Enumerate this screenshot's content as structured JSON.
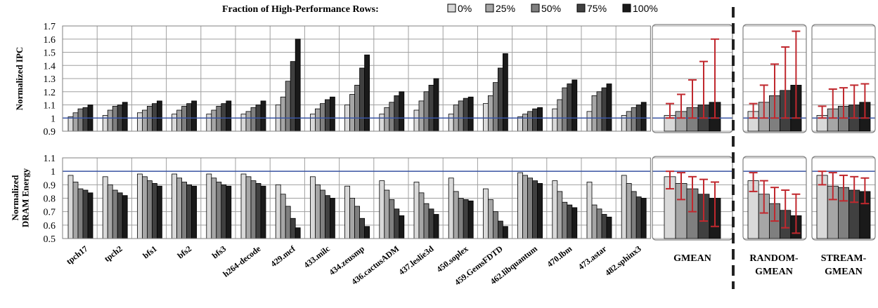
{
  "chart_data": {
    "type": "bar",
    "legend": {
      "title": "Fraction of High-Performance Rows:",
      "position": "top-center",
      "entries": [
        "0%",
        "25%",
        "50%",
        "75%",
        "100%"
      ],
      "colors": [
        "#d9d9d9",
        "#a6a6a6",
        "#7f7f7f",
        "#404040",
        "#1a1a1a"
      ]
    },
    "reference_line_color": "#3a55a4",
    "error_bar_color": "#c0282e",
    "categories": [
      "tpch17",
      "tpch2",
      "bfs1",
      "bfs2",
      "bfs3",
      "h264-decode",
      "429.mcf",
      "433.milc",
      "434.zeusmp",
      "436.cactusADM",
      "437.leslie3d",
      "450.soplex",
      "459.GemsFDTD",
      "462.libquantum",
      "470.lbm",
      "473.astar",
      "482.sphinx3"
    ],
    "panels": [
      {
        "ylabel": "Normalized IPC",
        "ylim": [
          0.9,
          1.7
        ],
        "yticks": [
          "0.9",
          "1",
          "1.1",
          "1.2",
          "1.3",
          "1.4",
          "1.5",
          "1.6",
          "1.7"
        ],
        "reference_line": 1.0,
        "values": [
          [
            1.01,
            1.04,
            1.07,
            1.08,
            1.1
          ],
          [
            1.02,
            1.06,
            1.09,
            1.1,
            1.12
          ],
          [
            1.04,
            1.06,
            1.09,
            1.11,
            1.13
          ],
          [
            1.03,
            1.06,
            1.09,
            1.11,
            1.13
          ],
          [
            1.03,
            1.06,
            1.09,
            1.11,
            1.13
          ],
          [
            1.03,
            1.05,
            1.08,
            1.1,
            1.13
          ],
          [
            1.1,
            1.16,
            1.28,
            1.43,
            1.6
          ],
          [
            1.03,
            1.07,
            1.11,
            1.14,
            1.16
          ],
          [
            1.1,
            1.18,
            1.25,
            1.38,
            1.48
          ],
          [
            1.03,
            1.08,
            1.12,
            1.17,
            1.2
          ],
          [
            1.06,
            1.13,
            1.2,
            1.25,
            1.3
          ],
          [
            1.03,
            1.1,
            1.13,
            1.15,
            1.16
          ],
          [
            1.11,
            1.17,
            1.27,
            1.38,
            1.49
          ],
          [
            1.01,
            1.03,
            1.05,
            1.07,
            1.08
          ],
          [
            1.07,
            1.14,
            1.23,
            1.26,
            1.29
          ],
          [
            1.05,
            1.17,
            1.2,
            1.23,
            1.26
          ],
          [
            1.02,
            1.05,
            1.08,
            1.1,
            1.12
          ]
        ],
        "gmean": {
          "label": "GMEAN",
          "ylim": [
            0.9,
            1.7
          ],
          "values": [
            1.02,
            1.05,
            1.08,
            1.1,
            1.12
          ],
          "error_low": [
            1.0,
            1.0,
            1.0,
            1.0,
            1.0
          ],
          "error_high": [
            1.11,
            1.18,
            1.29,
            1.43,
            1.6
          ]
        },
        "random_gmean": {
          "label": "RANDOM-GMEAN",
          "ylim": [
            0.9,
            1.7
          ],
          "values": [
            1.05,
            1.12,
            1.17,
            1.21,
            1.25
          ],
          "error_low": [
            1.0,
            1.0,
            1.0,
            1.0,
            1.0
          ],
          "error_high": [
            1.11,
            1.25,
            1.41,
            1.54,
            1.66
          ]
        },
        "stream_gmean": {
          "label": "STREAM-GMEAN",
          "ylim": [
            0.9,
            1.7
          ],
          "values": [
            1.02,
            1.07,
            1.09,
            1.1,
            1.12
          ],
          "error_low": [
            1.0,
            1.0,
            1.0,
            1.0,
            1.0
          ],
          "error_high": [
            1.09,
            1.22,
            1.23,
            1.25,
            1.26
          ]
        }
      },
      {
        "ylabel": "Normalized DRAM Energy",
        "ylim": [
          0.5,
          1.1
        ],
        "yticks": [
          "0.5",
          "0.6",
          "0.7",
          "0.8",
          "0.9",
          "1",
          "1.1"
        ],
        "reference_line": 1.0,
        "values": [
          [
            0.97,
            0.92,
            0.87,
            0.86,
            0.84
          ],
          [
            0.96,
            0.9,
            0.86,
            0.84,
            0.82
          ],
          [
            0.98,
            0.96,
            0.93,
            0.91,
            0.89
          ],
          [
            0.98,
            0.95,
            0.92,
            0.9,
            0.89
          ],
          [
            0.98,
            0.95,
            0.92,
            0.9,
            0.89
          ],
          [
            0.98,
            0.96,
            0.93,
            0.91,
            0.89
          ],
          [
            0.9,
            0.83,
            0.74,
            0.65,
            0.58
          ],
          [
            0.96,
            0.9,
            0.86,
            0.82,
            0.8
          ],
          [
            0.89,
            0.8,
            0.74,
            0.65,
            0.59
          ],
          [
            0.93,
            0.86,
            0.79,
            0.72,
            0.67
          ],
          [
            0.92,
            0.84,
            0.76,
            0.72,
            0.68
          ],
          [
            0.95,
            0.85,
            0.8,
            0.79,
            0.78
          ],
          [
            0.87,
            0.79,
            0.7,
            0.63,
            0.59
          ],
          [
            0.99,
            0.97,
            0.95,
            0.93,
            0.91
          ],
          [
            0.93,
            0.85,
            0.77,
            0.75,
            0.73
          ],
          [
            0.92,
            0.75,
            0.72,
            0.68,
            0.66
          ],
          [
            0.97,
            0.91,
            0.85,
            0.81,
            0.8
          ]
        ],
        "gmean": {
          "label": "GMEAN",
          "ylim": [
            0.5,
            1.1
          ],
          "values": [
            0.96,
            0.91,
            0.87,
            0.83,
            0.8
          ],
          "error_low": [
            0.87,
            0.79,
            0.7,
            0.63,
            0.59
          ],
          "error_high": [
            1.0,
            0.99,
            0.96,
            0.94,
            0.92
          ]
        },
        "random_gmean": {
          "label": "RANDOM-GMEAN",
          "ylim": [
            0.5,
            1.1
          ],
          "values": [
            0.93,
            0.83,
            0.76,
            0.71,
            0.67
          ],
          "error_low": [
            0.85,
            0.69,
            0.63,
            0.58,
            0.54
          ],
          "error_high": [
            0.99,
            0.93,
            0.88,
            0.86,
            0.83
          ]
        },
        "stream_gmean": {
          "label": "STREAM-GMEAN",
          "ylim": [
            0.5,
            1.1
          ],
          "values": [
            0.97,
            0.89,
            0.88,
            0.86,
            0.85
          ],
          "error_low": [
            0.9,
            0.79,
            0.78,
            0.77,
            0.76
          ],
          "error_high": [
            1.0,
            0.99,
            0.97,
            0.96,
            0.95
          ]
        }
      }
    ],
    "group_labels": {
      "gmean": [
        "GMEAN"
      ],
      "random_gmean": [
        "RANDOM-",
        "GMEAN"
      ],
      "stream_gmean": [
        "STREAM-",
        "GMEAN"
      ]
    }
  }
}
